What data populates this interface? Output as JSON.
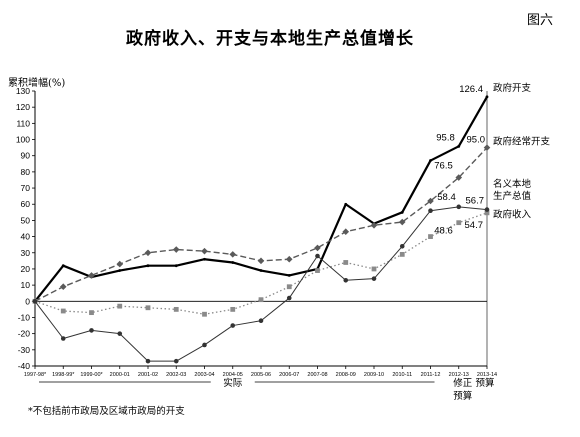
{
  "figure_label": "图六",
  "chart_data": {
    "type": "line",
    "title": "政府收入、开支与本地生产总值增长",
    "ylabel": "累积增幅(%)",
    "ylim": [
      -40,
      130
    ],
    "yticks": [
      -40,
      -30,
      -20,
      -10,
      0,
      10,
      20,
      30,
      40,
      50,
      60,
      70,
      80,
      90,
      100,
      110,
      120,
      130
    ],
    "grid": false,
    "categories": [
      "1997-98*",
      "1998-99*",
      "1999-00*",
      "2000-01",
      "2001-02",
      "2002-03",
      "2003-04",
      "2004-05",
      "2005-06",
      "2006-07",
      "2007-08",
      "2008-09",
      "2009-10",
      "2010-11",
      "2011-12",
      "2012-13",
      "2013-14"
    ],
    "x_period_labels": {
      "actual": "实际",
      "revised": "修正\n预算",
      "budget": "预算"
    },
    "series": [
      {
        "name": "政府开支",
        "style": "solid-bold",
        "color": "#000000",
        "values": [
          0,
          22,
          15,
          19,
          22,
          22,
          26,
          24,
          19,
          16,
          20,
          60,
          48,
          55,
          87,
          95.8,
          126.4
        ]
      },
      {
        "name": "政府经常开支",
        "style": "dashed-diamond",
        "color": "#5a5a5a",
        "values": [
          0,
          9,
          16,
          23,
          30,
          32,
          31,
          29,
          25,
          26,
          33,
          43,
          47,
          49,
          62,
          76.5,
          95.0
        ]
      },
      {
        "name": "名义本地生产总值",
        "style": "dotted-square",
        "color": "#8a8a8a",
        "values": [
          0,
          -6,
          -7,
          -3,
          -4,
          -5,
          -8,
          -5,
          1,
          9,
          19,
          24,
          20,
          29,
          40,
          48.6,
          54.7
        ]
      },
      {
        "name": "政府收入",
        "style": "solid-circle",
        "color": "#333333",
        "values": [
          0,
          -23,
          -18,
          -20,
          -37,
          -37,
          -27,
          -15,
          -12,
          2,
          28,
          13,
          14,
          34,
          56,
          58.4,
          56.7
        ]
      }
    ],
    "data_labels": [
      {
        "series": 0,
        "index": 16,
        "text": "126.4"
      },
      {
        "series": 0,
        "index": 15,
        "text": "95.8"
      },
      {
        "series": 1,
        "index": 16,
        "text": "95.0"
      },
      {
        "series": 1,
        "index": 15,
        "text": "76.5"
      },
      {
        "series": 3,
        "index": 15,
        "text": "58.4"
      },
      {
        "series": 3,
        "index": 16,
        "text": "56.7"
      },
      {
        "series": 2,
        "index": 15,
        "text": "48.6"
      },
      {
        "series": 2,
        "index": 16,
        "text": "54.7"
      }
    ],
    "series_labels": [
      {
        "series": 0,
        "lines": [
          "政府开支"
        ]
      },
      {
        "series": 1,
        "lines": [
          "政府经常开支"
        ]
      },
      {
        "series": 2,
        "lines": [
          "名义本地",
          "生产总值"
        ]
      },
      {
        "series": 3,
        "lines": [
          "政府收入"
        ]
      }
    ]
  },
  "footnote": "*不包括前市政局及区域市政局的开支"
}
